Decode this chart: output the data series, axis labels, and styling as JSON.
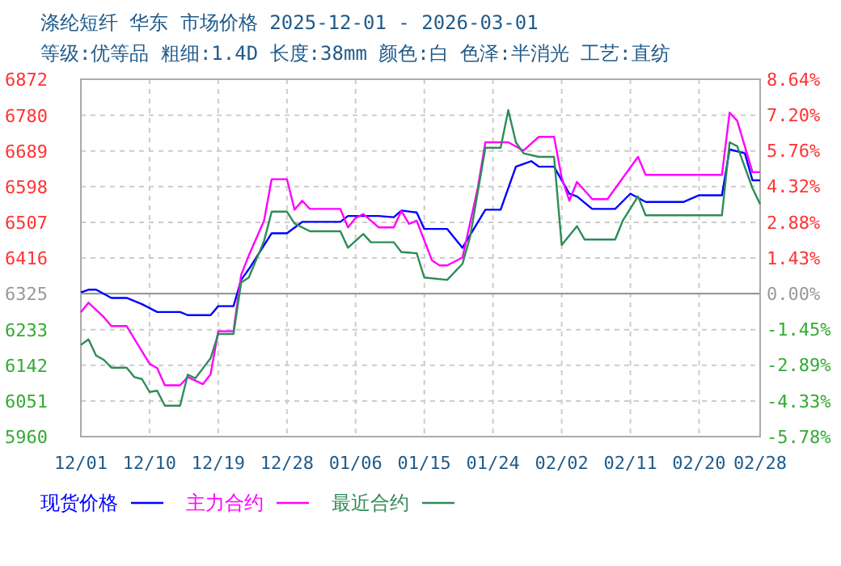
{
  "chart_data": {
    "type": "line",
    "title": "涤纶短纤 华东 市场价格 2025-12-01 - 2026-03-01",
    "subtitle": "等级:优等品 粗细:1.4D 长度:38mm 颜色:白 色泽:半消光 工艺:直纺",
    "xlim": [
      "2025-12-01",
      "2026-02-28"
    ],
    "xticks": [
      {
        "value": "2025-12-01",
        "label": "12/01"
      },
      {
        "value": "2025-12-10",
        "label": "12/10"
      },
      {
        "value": "2025-12-19",
        "label": "12/19"
      },
      {
        "value": "2025-12-28",
        "label": "12/28"
      },
      {
        "value": "2026-01-06",
        "label": "01/06"
      },
      {
        "value": "2026-01-15",
        "label": "01/15"
      },
      {
        "value": "2026-01-24",
        "label": "01/24"
      },
      {
        "value": "2026-02-02",
        "label": "02/02"
      },
      {
        "value": "2026-02-11",
        "label": "02/11"
      },
      {
        "value": "2026-02-20",
        "label": "02/20"
      },
      {
        "value": "2026-02-28",
        "label": "02/28"
      }
    ],
    "ylim": [
      5960,
      6872
    ],
    "yticks": [
      5960,
      6051,
      6142,
      6233,
      6325,
      6416,
      6507,
      6598,
      6689,
      6780,
      6872
    ],
    "y2lim": [
      -5.78,
      8.64
    ],
    "y2ticks": [
      {
        "value": -5.78,
        "label": "-5.78%"
      },
      {
        "value": -4.33,
        "label": "-4.33%"
      },
      {
        "value": -2.89,
        "label": "-2.89%"
      },
      {
        "value": -1.45,
        "label": "-1.45%"
      },
      {
        "value": 0,
        "label": "0.00%"
      },
      {
        "value": 1.43,
        "label": "1.43%"
      },
      {
        "value": 2.88,
        "label": "2.88%"
      },
      {
        "value": 4.32,
        "label": "4.32%"
      },
      {
        "value": 5.76,
        "label": "5.76%"
      },
      {
        "value": 7.2,
        "label": "7.20%"
      },
      {
        "value": 8.64,
        "label": "8.64%"
      }
    ],
    "ref_lines": [
      {
        "axis": "y",
        "value": 6325,
        "color": "#999999"
      }
    ],
    "grid": true,
    "legend": "bottom",
    "line_style": "solid",
    "series": [
      {
        "name": "现货价格",
        "color": "#0000ff",
        "x": [
          "2025-12-01",
          "2025-12-02",
          "2025-12-03",
          "2025-12-05",
          "2025-12-07",
          "2025-12-09",
          "2025-12-11",
          "2025-12-14",
          "2025-12-15",
          "2025-12-18",
          "2025-12-19",
          "2025-12-21",
          "2025-12-22",
          "2025-12-23",
          "2025-12-26",
          "2025-12-28",
          "2025-12-30",
          "2026-01-04",
          "2026-01-05",
          "2026-01-09",
          "2026-01-11",
          "2026-01-12",
          "2026-01-14",
          "2026-01-15",
          "2026-01-18",
          "2026-01-20",
          "2026-01-23",
          "2026-01-25",
          "2026-01-27",
          "2026-01-29",
          "2026-01-30",
          "2026-02-01",
          "2026-02-03",
          "2026-02-04",
          "2026-02-06",
          "2026-02-09",
          "2026-02-11",
          "2026-02-13",
          "2026-02-18",
          "2026-02-20",
          "2026-02-23",
          "2026-02-24",
          "2026-02-26",
          "2026-02-27",
          "2026-02-28"
        ],
        "values": [
          6328,
          6335,
          6335,
          6314,
          6314,
          6298,
          6278,
          6278,
          6270,
          6270,
          6293,
          6293,
          6360,
          6387,
          6479,
          6479,
          6508,
          6508,
          6523,
          6523,
          6520,
          6537,
          6532,
          6490,
          6490,
          6442,
          6539,
          6539,
          6649,
          6663,
          6649,
          6649,
          6580,
          6573,
          6541,
          6541,
          6580,
          6559,
          6559,
          6576,
          6576,
          6693,
          6683,
          6614,
          6614
        ]
      },
      {
        "name": "主力合约",
        "color": "#ff00ff",
        "x": [
          "2025-12-01",
          "2025-12-02",
          "2025-12-04",
          "2025-12-05",
          "2025-12-07",
          "2025-12-10",
          "2025-12-11",
          "2025-12-12",
          "2025-12-14",
          "2025-12-15",
          "2025-12-17",
          "2025-12-18",
          "2025-12-19",
          "2025-12-21",
          "2025-12-22",
          "2025-12-23",
          "2025-12-25",
          "2025-12-26",
          "2025-12-28",
          "2025-12-29",
          "2025-12-30",
          "2025-12-31",
          "2026-01-04",
          "2026-01-05",
          "2026-01-06",
          "2026-01-07",
          "2026-01-09",
          "2026-01-11",
          "2026-01-12",
          "2026-01-13",
          "2026-01-14",
          "2026-01-16",
          "2026-01-17",
          "2026-01-18",
          "2026-01-20",
          "2026-01-22",
          "2026-01-23",
          "2026-01-26",
          "2026-01-28",
          "2026-01-30",
          "2026-02-01",
          "2026-02-02",
          "2026-02-03",
          "2026-02-04",
          "2026-02-06",
          "2026-02-08",
          "2026-02-12",
          "2026-02-13",
          "2026-02-23",
          "2026-02-24",
          "2026-02-25",
          "2026-02-27",
          "2026-02-28"
        ],
        "values": [
          6277,
          6302,
          6265,
          6242,
          6242,
          6146,
          6135,
          6091,
          6091,
          6112,
          6094,
          6119,
          6229,
          6229,
          6373,
          6422,
          6511,
          6617,
          6617,
          6539,
          6562,
          6541,
          6541,
          6494,
          6518,
          6528,
          6494,
          6494,
          6536,
          6503,
          6511,
          6410,
          6397,
          6397,
          6417,
          6594,
          6711,
          6711,
          6690,
          6725,
          6725,
          6621,
          6562,
          6610,
          6566,
          6566,
          6674,
          6628,
          6628,
          6787,
          6766,
          6635,
          6635
        ]
      },
      {
        "name": "最近合约",
        "color": "#2e8b57",
        "x": [
          "2025-12-01",
          "2025-12-02",
          "2025-12-03",
          "2025-12-04",
          "2025-12-05",
          "2025-12-07",
          "2025-12-08",
          "2025-12-09",
          "2025-12-10",
          "2025-12-11",
          "2025-12-12",
          "2025-12-14",
          "2025-12-15",
          "2025-12-16",
          "2025-12-18",
          "2025-12-19",
          "2025-12-21",
          "2025-12-22",
          "2025-12-23",
          "2025-12-25",
          "2025-12-26",
          "2025-12-28",
          "2025-12-29",
          "2025-12-31",
          "2026-01-04",
          "2026-01-05",
          "2026-01-07",
          "2026-01-08",
          "2026-01-11",
          "2026-01-12",
          "2026-01-14",
          "2026-01-15",
          "2026-01-18",
          "2026-01-20",
          "2026-01-21",
          "2026-01-23",
          "2026-01-25",
          "2026-01-26",
          "2026-01-27",
          "2026-01-28",
          "2026-01-30",
          "2026-02-01",
          "2026-02-02",
          "2026-02-04",
          "2026-02-05",
          "2026-02-09",
          "2026-02-10",
          "2026-02-12",
          "2026-02-13",
          "2026-02-23",
          "2026-02-24",
          "2026-02-25",
          "2026-02-27",
          "2026-02-28"
        ],
        "values": [
          6194,
          6208,
          6167,
          6156,
          6136,
          6136,
          6112,
          6107,
          6074,
          6077,
          6039,
          6039,
          6118,
          6109,
          6160,
          6222,
          6222,
          6353,
          6366,
          6459,
          6534,
          6534,
          6504,
          6484,
          6484,
          6442,
          6477,
          6456,
          6456,
          6431,
          6428,
          6366,
          6360,
          6401,
          6470,
          6697,
          6697,
          6793,
          6711,
          6683,
          6674,
          6674,
          6449,
          6497,
          6463,
          6463,
          6511,
          6573,
          6525,
          6525,
          6711,
          6701,
          6594,
          6553
        ]
      }
    ]
  }
}
